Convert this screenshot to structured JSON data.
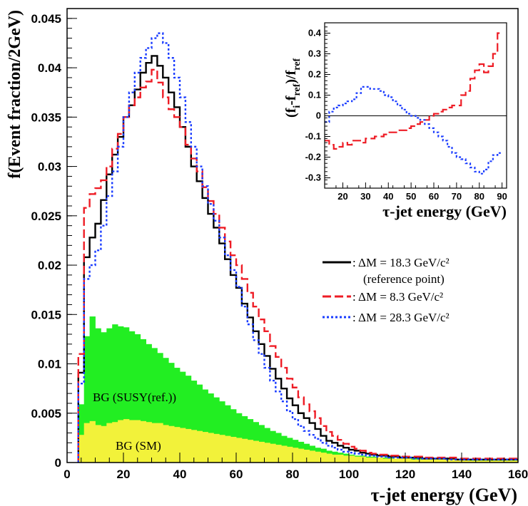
{
  "chart_data": [
    {
      "type": "line",
      "title": "",
      "xlabel": "τ-jet energy (GeV)",
      "ylabel": "f(Event fraction/2GeV)",
      "xlim": [
        0,
        160
      ],
      "ylim": [
        0,
        0.046
      ],
      "x_ticks": [
        "0",
        "20",
        "40",
        "60",
        "80",
        "100",
        "120",
        "140",
        "160"
      ],
      "y_ticks": [
        "0",
        "0.005",
        "0.01",
        "0.015",
        "0.02",
        "0.025",
        "0.03",
        "0.035",
        "0.04",
        "0.045"
      ],
      "bin_width": 2,
      "x_bins_start": 4,
      "series": [
        {
          "name": ": ΔM = 18.3 GeV/c²",
          "sublabel": "(reference point)",
          "color": "#000000",
          "style": "solid",
          "values": [
            0.0091,
            0.0208,
            0.0228,
            0.0242,
            0.0266,
            0.0292,
            0.0312,
            0.033,
            0.035,
            0.0362,
            0.0378,
            0.0395,
            0.0405,
            0.0412,
            0.0402,
            0.039,
            0.0375,
            0.036,
            0.034,
            0.032,
            0.03,
            0.0285,
            0.0268,
            0.0252,
            0.0238,
            0.0222,
            0.0206,
            0.019,
            0.0177,
            0.0161,
            0.0147,
            0.0133,
            0.012,
            0.0108,
            0.0095,
            0.0085,
            0.0075,
            0.0065,
            0.0058,
            0.005,
            0.0045,
            0.004,
            0.0034,
            0.0027,
            0.0022,
            0.002,
            0.0017,
            0.0015,
            0.0013,
            0.0012,
            0.001,
            0.0009,
            0.0008,
            0.0007,
            0.0007,
            0.0006,
            0.0006,
            0.0005,
            0.0005,
            0.0005,
            0.0005,
            0.0004,
            0.0004,
            0.0004,
            0.0004,
            0.0004,
            0.0004,
            0.0003,
            0.0003,
            0.0003,
            0.0003,
            0.0003,
            0.0003,
            0.0003,
            0.0003,
            0.0003,
            0.0003,
            0.0003
          ]
        },
        {
          "name": ": ΔM =  8.3 GeV/c²",
          "color": "#ee1c25",
          "style": "dashed",
          "values": [
            0.011,
            0.0258,
            0.0272,
            0.0278,
            0.0286,
            0.03,
            0.0318,
            0.0333,
            0.035,
            0.0362,
            0.037,
            0.038,
            0.0386,
            0.0398,
            0.0385,
            0.037,
            0.0358,
            0.035,
            0.034,
            0.0322,
            0.0308,
            0.0295,
            0.0279,
            0.0265,
            0.0252,
            0.0238,
            0.0224,
            0.021,
            0.02,
            0.0186,
            0.0172,
            0.0158,
            0.0145,
            0.0133,
            0.0118,
            0.0107,
            0.0096,
            0.0085,
            0.0076,
            0.0066,
            0.0059,
            0.0052,
            0.0045,
            0.0037,
            0.0031,
            0.0027,
            0.0023,
            0.0019,
            0.0016,
            0.0014,
            0.0012,
            0.001,
            0.0009,
            0.0008,
            0.0008,
            0.0007,
            0.0007,
            0.0006,
            0.0006,
            0.0006,
            0.0006,
            0.0005,
            0.0005,
            0.0005,
            0.0005,
            0.0005,
            0.0005,
            0.0004,
            0.0004,
            0.0004,
            0.0004,
            0.0004,
            0.0004,
            0.0004,
            0.0004,
            0.0004,
            0.0004,
            0.0004
          ]
        },
        {
          "name": ": ΔM = 28.3 GeV/c²",
          "color": "#1a3cff",
          "style": "dotted",
          "values": [
            0.008,
            0.0186,
            0.02,
            0.0215,
            0.024,
            0.027,
            0.0295,
            0.032,
            0.035,
            0.0375,
            0.0395,
            0.041,
            0.042,
            0.043,
            0.0435,
            0.0425,
            0.041,
            0.039,
            0.037,
            0.0345,
            0.032,
            0.03,
            0.028,
            0.0262,
            0.0245,
            0.0228,
            0.021,
            0.0195,
            0.0178,
            0.0158,
            0.014,
            0.0124,
            0.011,
            0.0096,
            0.0083,
            0.0072,
            0.0062,
            0.0052,
            0.0044,
            0.0037,
            0.0032,
            0.0028,
            0.0024,
            0.002,
            0.0017,
            0.0015,
            0.0013,
            0.0011,
            0.001,
            0.0009,
            0.0008,
            0.0007,
            0.0007,
            0.0006,
            0.0006,
            0.0005,
            0.0005,
            0.0005,
            0.0005,
            0.0004,
            0.0004,
            0.0004,
            0.0004,
            0.0004,
            0.0004,
            0.0003,
            0.0003,
            0.0003,
            0.0003,
            0.0003,
            0.0003,
            0.0003,
            0.0003,
            0.0003,
            0.0003,
            0.0003,
            0.0003,
            0.0003
          ]
        }
      ],
      "filled_series": [
        {
          "name": "BG (SUSY(ref.))",
          "color": "#22ee22",
          "values": [
            0.0059,
            0.0128,
            0.0148,
            0.0136,
            0.0132,
            0.0136,
            0.014,
            0.0138,
            0.0137,
            0.0133,
            0.013,
            0.0125,
            0.012,
            0.0116,
            0.0111,
            0.0106,
            0.0101,
            0.0096,
            0.0092,
            0.0088,
            0.0083,
            0.0079,
            0.0074,
            0.007,
            0.0066,
            0.0062,
            0.0058,
            0.0054,
            0.005,
            0.0047,
            0.0044,
            0.0041,
            0.0038,
            0.0035,
            0.0032,
            0.003,
            0.0027,
            0.0025,
            0.0023,
            0.0021,
            0.0019,
            0.0017,
            0.0015,
            0.0014,
            0.0012,
            0.0011,
            0.001,
            0.0009,
            0.0008,
            0.0007,
            0.0007,
            0.0006,
            0.0006,
            0.0005,
            0.0005,
            0.0005,
            0.0004,
            0.0004,
            0.0004,
            0.0004,
            0.0004,
            0.0003,
            0.0003,
            0.0003,
            0.0003,
            0.0003,
            0.0003,
            0.0003,
            0.0003,
            0.0003,
            0.0003,
            0.0003,
            0.0003,
            0.0003,
            0.0003,
            0.0003,
            0.0003,
            0.0003
          ]
        },
        {
          "name": "BG (SM)",
          "color": "#f2f23a",
          "values": [
            0.0028,
            0.004,
            0.0042,
            0.0038,
            0.0037,
            0.004,
            0.0041,
            0.0043,
            0.0044,
            0.0043,
            0.0043,
            0.0042,
            0.0041,
            0.004,
            0.004,
            0.0038,
            0.0037,
            0.0036,
            0.0035,
            0.0034,
            0.0033,
            0.0032,
            0.0031,
            0.003,
            0.0029,
            0.0028,
            0.0027,
            0.0026,
            0.0025,
            0.0024,
            0.0023,
            0.0022,
            0.0021,
            0.002,
            0.0019,
            0.0018,
            0.0017,
            0.0016,
            0.0015,
            0.0014,
            0.0013,
            0.0012,
            0.0011,
            0.001,
            0.0009,
            0.0008,
            0.0008,
            0.0007,
            0.0007,
            0.0006,
            0.0006,
            0.0005,
            0.0005,
            0.0005,
            0.0004,
            0.0004,
            0.0004,
            0.0004,
            0.0004,
            0.0003,
            0.0003,
            0.0003,
            0.0003,
            0.0003,
            0.0003,
            0.0003,
            0.0003,
            0.0003,
            0.0003,
            0.0002,
            0.0002,
            0.0002,
            0.0002,
            0.0002,
            0.0002,
            0.0002,
            0.0002,
            0.0002
          ]
        }
      ],
      "legend": "right"
    },
    {
      "type": "line",
      "title": "",
      "xlabel": "τ-jet energy (GeV)",
      "ylabel": "(f_i-f_ref)/f_ref",
      "ylabel_parts": [
        "(f",
        "i",
        "-f",
        "ref",
        ")/f",
        "ref"
      ],
      "xlim": [
        12,
        92
      ],
      "ylim": [
        -0.35,
        0.45
      ],
      "x_ticks": [
        "20",
        "30",
        "40",
        "50",
        "60",
        "70",
        "80",
        "90"
      ],
      "y_ticks": [
        "-0.3",
        "-0.2",
        "-0.1",
        "0",
        "0.1",
        "0.2",
        "0.3",
        "0.4"
      ],
      "bin_width": 2,
      "x_bins_start": 12,
      "series": [
        {
          "name": "ΔM = 8.3",
          "color": "#ee1c25",
          "style": "dashed",
          "values": [
            -0.12,
            -0.14,
            -0.16,
            -0.15,
            -0.13,
            -0.14,
            -0.12,
            -0.12,
            -0.13,
            -0.11,
            -0.11,
            -0.1,
            -0.1,
            -0.09,
            -0.08,
            -0.08,
            -0.07,
            -0.07,
            -0.06,
            -0.05,
            -0.04,
            -0.03,
            -0.02,
            0.0,
            0.01,
            0.02,
            0.03,
            0.04,
            0.05,
            0.05,
            0.1,
            0.12,
            0.18,
            0.22,
            0.25,
            0.21,
            0.24,
            0.3,
            0.4
          ]
        },
        {
          "name": "ΔM = 28.3",
          "color": "#1a3cff",
          "style": "dotted",
          "values": [
            -0.03,
            0.02,
            0.04,
            0.05,
            0.06,
            0.07,
            0.08,
            0.11,
            0.14,
            0.14,
            0.13,
            0.13,
            0.12,
            0.1,
            0.09,
            0.07,
            0.05,
            0.03,
            0.01,
            0.0,
            -0.01,
            -0.02,
            -0.04,
            -0.06,
            -0.08,
            -0.1,
            -0.12,
            -0.15,
            -0.18,
            -0.2,
            -0.21,
            -0.23,
            -0.25,
            -0.27,
            -0.28,
            -0.26,
            -0.22,
            -0.19,
            -0.18
          ]
        }
      ]
    }
  ]
}
